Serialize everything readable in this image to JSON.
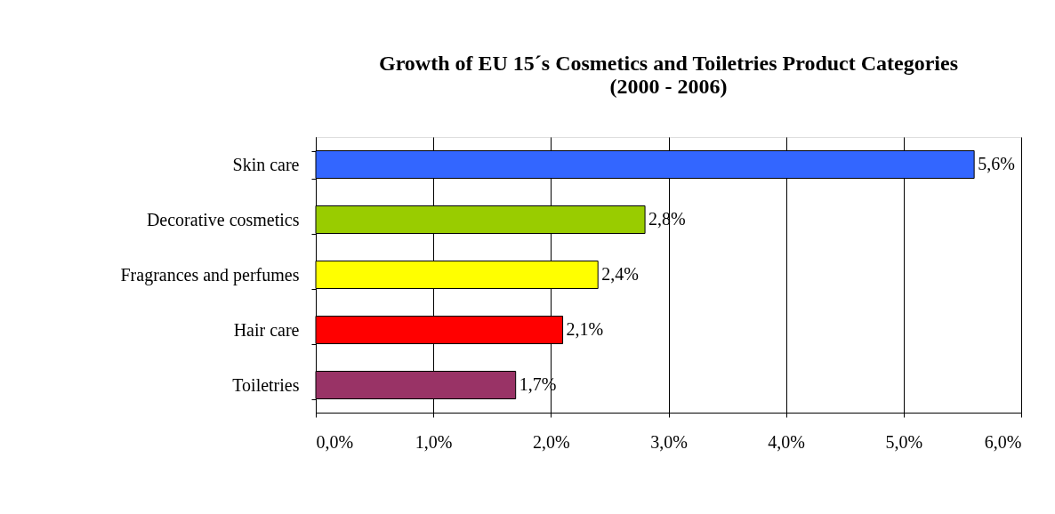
{
  "chart_data": {
    "type": "bar",
    "orientation": "horizontal",
    "title": "Growth of EU 15´s Cosmetics and Toiletries Product Categories\n(2000 - 2006)",
    "categories": [
      "Skin care",
      "Decorative cosmetics",
      "Fragrances and perfumes",
      "Hair care",
      "Toiletries"
    ],
    "values": [
      5.6,
      2.8,
      2.4,
      2.1,
      1.7
    ],
    "colors": [
      "#3366ff",
      "#99cc00",
      "#ffff00",
      "#ff0000",
      "#993366"
    ],
    "value_labels": [
      "5,6%",
      "2,8%",
      "2,4%",
      "2,1%",
      "1,7%"
    ],
    "xlim": [
      0,
      6
    ],
    "xticks": [
      {
        "value": 0,
        "label": "0,0%"
      },
      {
        "value": 1,
        "label": "1,0%"
      },
      {
        "value": 2,
        "label": "2,0%"
      },
      {
        "value": 3,
        "label": "3,0%"
      },
      {
        "value": 4,
        "label": "4,0%"
      },
      {
        "value": 5,
        "label": "5,0%"
      },
      {
        "value": 6,
        "label": "6,0%"
      }
    ],
    "grid": "x"
  }
}
